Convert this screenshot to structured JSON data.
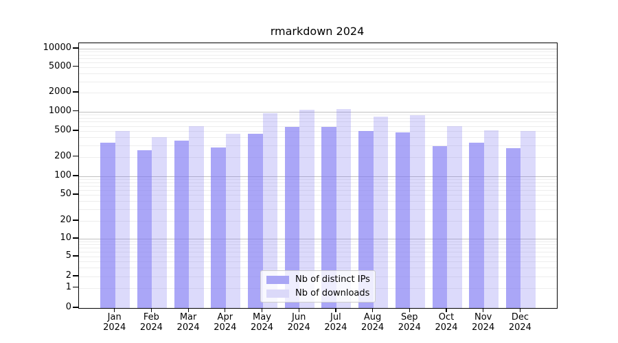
{
  "title": "rmarkdown 2024",
  "chart_data": {
    "type": "bar",
    "title": "rmarkdown 2024",
    "categories": [
      "Jan 2024",
      "Feb 2024",
      "Mar 2024",
      "Apr 2024",
      "May 2024",
      "Jun 2024",
      "Jul 2024",
      "Aug 2024",
      "Sep 2024",
      "Oct 2024",
      "Nov 2024",
      "Dec 2024"
    ],
    "x_labels": [
      {
        "month": "Jan",
        "year": "2024"
      },
      {
        "month": "Feb",
        "year": "2024"
      },
      {
        "month": "Mar",
        "year": "2024"
      },
      {
        "month": "Apr",
        "year": "2024"
      },
      {
        "month": "May",
        "year": "2024"
      },
      {
        "month": "Jun",
        "year": "2024"
      },
      {
        "month": "Jul",
        "year": "2024"
      },
      {
        "month": "Aug",
        "year": "2024"
      },
      {
        "month": "Sep",
        "year": "2024"
      },
      {
        "month": "Oct",
        "year": "2024"
      },
      {
        "month": "Nov",
        "year": "2024"
      },
      {
        "month": "Dec",
        "year": "2024"
      }
    ],
    "series": [
      {
        "name": "Nb of distinct IPs",
        "color": "#a9a6f5",
        "values": [
          330,
          255,
          360,
          280,
          450,
          575,
          575,
          500,
          475,
          290,
          335,
          275
        ]
      },
      {
        "name": "Nb of downloads",
        "color": "#dbd9f9",
        "values": [
          500,
          400,
          600,
          450,
          950,
          1080,
          1110,
          830,
          880,
          590,
          510,
          505
        ]
      }
    ],
    "y_scale": "log (symlog near zero)",
    "y_ticks": [
      "10000",
      "5000",
      "2000",
      "1000",
      "500",
      "200",
      "100",
      "50",
      "20",
      "10",
      "5",
      "2",
      "1",
      "0"
    ],
    "ylim": [
      0,
      10000
    ],
    "grid": "horizontal, major and minor",
    "legend_position": "bottom-center-inside"
  },
  "colors": {
    "bar_distinct_ips": "#a9a6f5",
    "bar_downloads": "#dbd9f9",
    "grid_major": "#c0c0c0",
    "grid_minor": "#ededed",
    "axis_frame": "#000000",
    "background": "#ffffff"
  }
}
